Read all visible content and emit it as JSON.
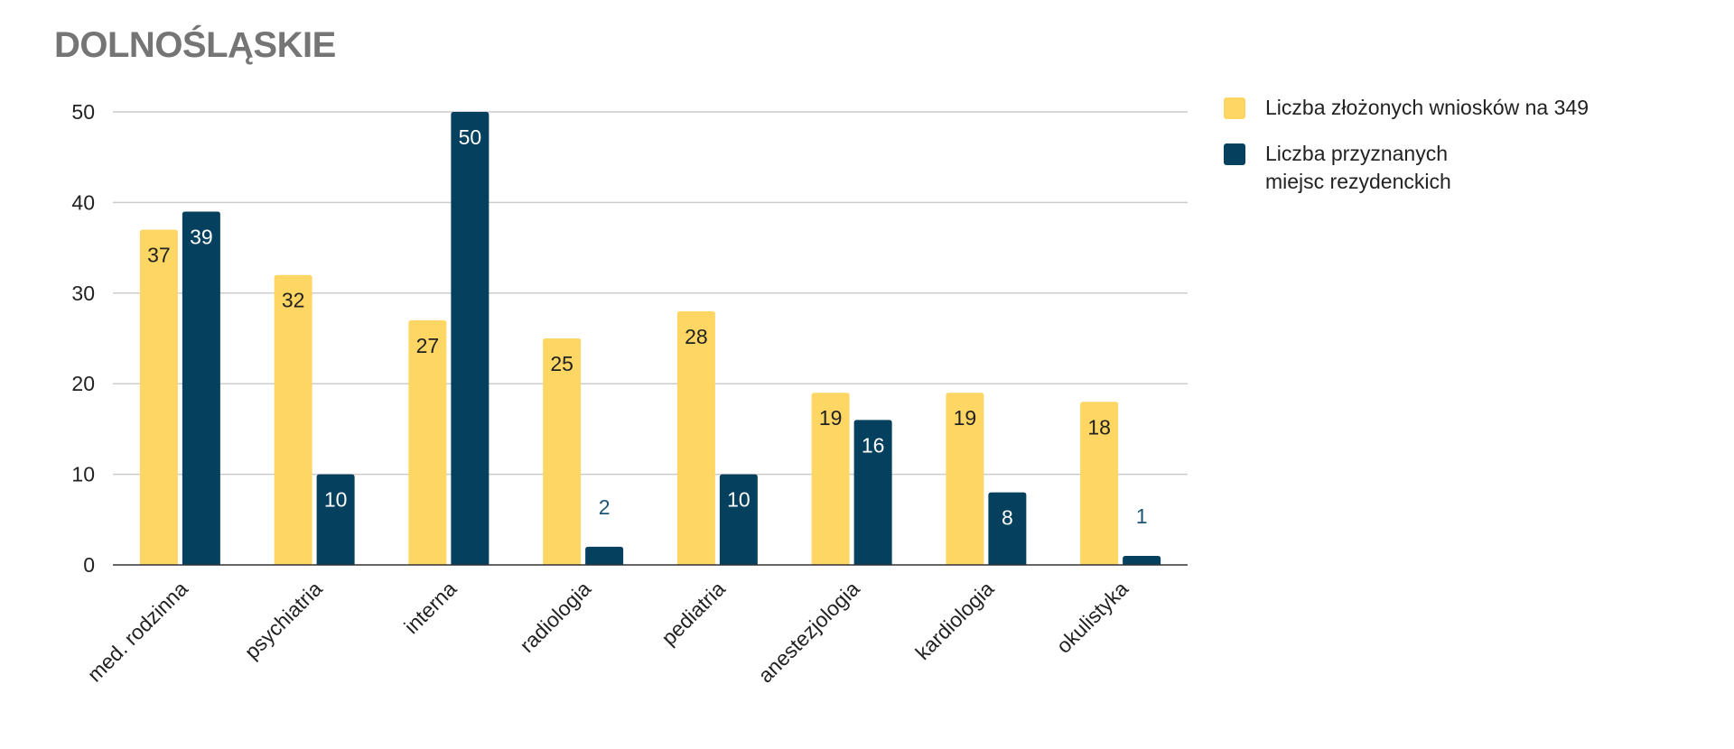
{
  "chart_data": {
    "type": "bar",
    "title": "DOLNOŚLĄSKIE",
    "xlabel": "",
    "ylabel": "",
    "ylim": [
      0,
      50
    ],
    "yticks": [
      0,
      10,
      20,
      30,
      40,
      50
    ],
    "grid": true,
    "legend_position": "right",
    "categories": [
      "med. rodzinna",
      "psychiatria",
      "interna",
      "radiologia",
      "pediatria",
      "anestezjologia",
      "kardiologia",
      "okulistyka"
    ],
    "series": [
      {
        "name": "Liczba złożonych wniosków na 349",
        "color": "#FDD663",
        "label_color": "#222222",
        "values": [
          37,
          32,
          27,
          25,
          28,
          19,
          19,
          18
        ]
      },
      {
        "name": "Liczba przyznanych miejsc rezydenckich",
        "color": "#05415F",
        "label_color": "#ffffff",
        "label_color_outside": "#1D5577",
        "values": [
          39,
          10,
          50,
          2,
          10,
          16,
          8,
          1
        ]
      }
    ]
  }
}
